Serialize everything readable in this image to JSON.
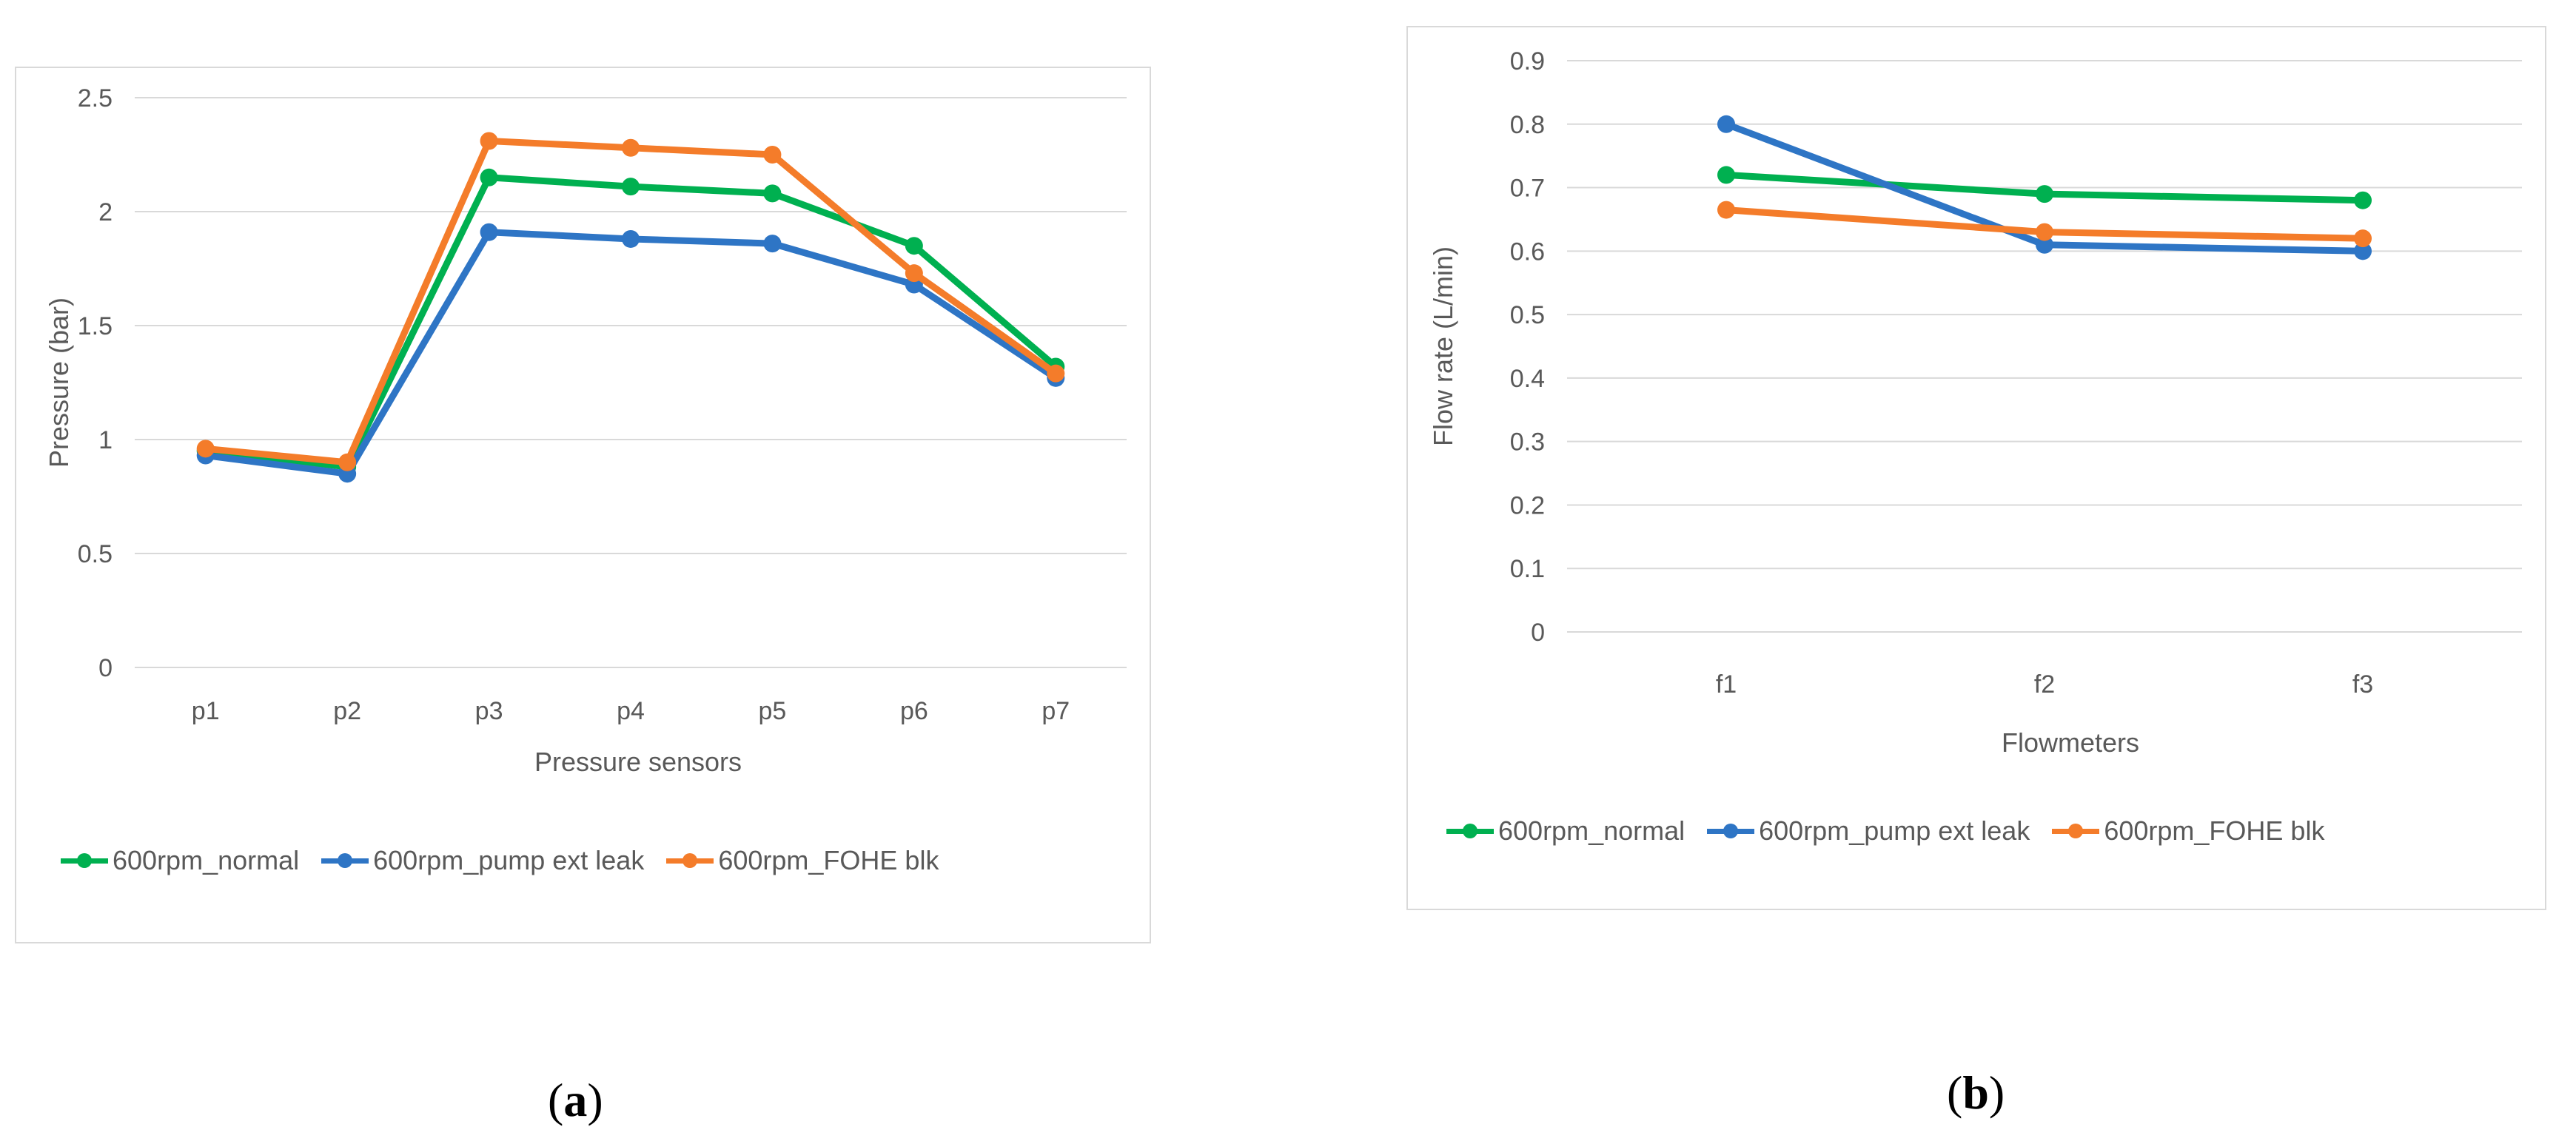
{
  "chart_data": [
    {
      "type": "line",
      "panel": "a",
      "title": "",
      "xlabel": "Pressure sensors",
      "ylabel": "Pressure (bar)",
      "categories": [
        "p1",
        "p2",
        "p3",
        "p4",
        "p5",
        "p6",
        "p7"
      ],
      "ylim": [
        0,
        2.5
      ],
      "yticks": [
        "0",
        "0.5",
        "1",
        "1.5",
        "2",
        "2.5"
      ],
      "grid": true,
      "legend": "bottom",
      "series": [
        {
          "name": "600rpm_normal",
          "color": "#00b050",
          "values": [
            0.95,
            0.88,
            2.15,
            2.11,
            2.08,
            1.85,
            1.32
          ]
        },
        {
          "name": "600rpm_pump ext leak",
          "color": "#2e75c5",
          "values": [
            0.93,
            0.85,
            1.91,
            1.88,
            1.86,
            1.68,
            1.27
          ]
        },
        {
          "name": "600rpm_FOHE blk",
          "color": "#f47c2a",
          "values": [
            0.96,
            0.9,
            2.31,
            2.28,
            2.25,
            1.73,
            1.29
          ]
        }
      ]
    },
    {
      "type": "line",
      "panel": "b",
      "title": "",
      "xlabel": "Flowmeters",
      "ylabel": "Flow rate (L/min)",
      "categories": [
        "f1",
        "f2",
        "f3"
      ],
      "ylim": [
        0,
        0.9
      ],
      "yticks": [
        "0",
        "0.1",
        "0.2",
        "0.3",
        "0.4",
        "0.5",
        "0.6",
        "0.7",
        "0.8",
        "0.9"
      ],
      "grid": true,
      "legend": "bottom",
      "series": [
        {
          "name": "600rpm_normal",
          "color": "#00b050",
          "values": [
            0.72,
            0.69,
            0.68
          ]
        },
        {
          "name": "600rpm_pump ext leak",
          "color": "#2e75c5",
          "values": [
            0.8,
            0.61,
            0.6
          ]
        },
        {
          "name": "600rpm_FOHE blk",
          "color": "#f47c2a",
          "values": [
            0.665,
            0.63,
            0.62
          ]
        }
      ]
    }
  ],
  "panel_labels": {
    "a": {
      "open": "(",
      "letter": "a",
      "close": ")"
    },
    "b": {
      "open": "(",
      "letter": "b",
      "close": ")"
    }
  }
}
